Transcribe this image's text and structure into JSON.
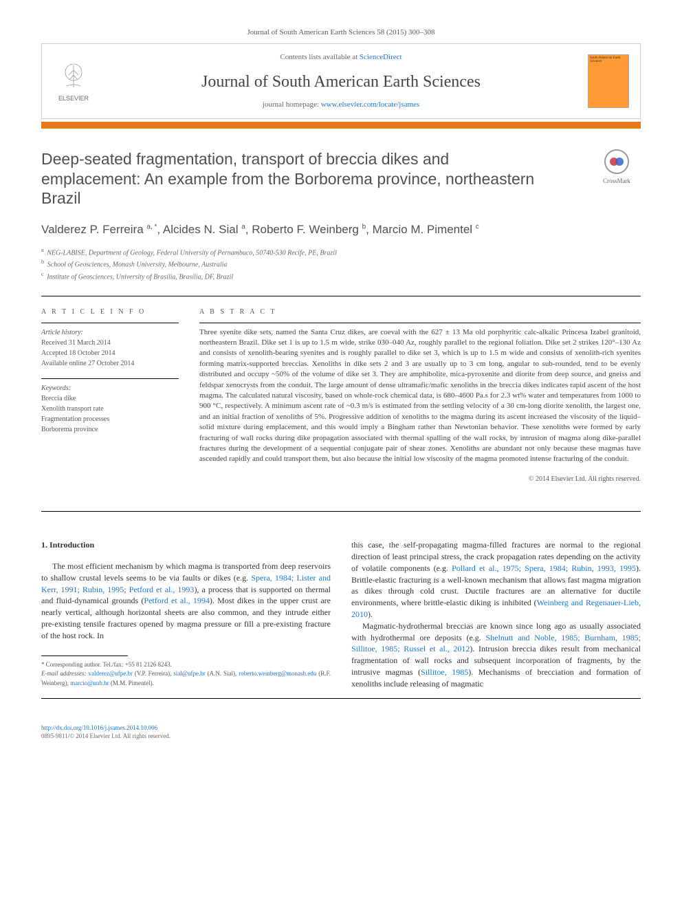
{
  "journal_ref": "Journal of South American Earth Sciences 58 (2015) 300–308",
  "header": {
    "contents_text": "Contents lists available at ",
    "contents_link": "ScienceDirect",
    "journal_title": "Journal of South American Earth Sciences",
    "homepage_text": "journal homepage: ",
    "homepage_link": "www.elsevier.com/locate/jsames",
    "elsevier_label": "ELSEVIER",
    "cover_title": "South American Earth Sciences"
  },
  "article": {
    "title": "Deep-seated fragmentation, transport of breccia dikes and emplacement: An example from the Borborema province, northeastern Brazil",
    "crossmark": "CrossMark",
    "authors_html": "Valderez P. Ferreira <sup>a, *</sup>, Alcides N. Sial <sup>a</sup>, Roberto F. Weinberg <sup>b</sup>, Marcio M. Pimentel <sup>c</sup>",
    "affiliations": [
      "a NEG-LABISE, Department of Geology, Federal University of Pernambuco, 50740-530 Recife, PE, Brazil",
      "b School of Geosciences, Monash University, Melbourne, Australia",
      "c Institute of Geosciences, University of Brasília, Brasília, DF, Brazil"
    ]
  },
  "info": {
    "heading": "A R T I C L E   I N F O",
    "history_label": "Article history:",
    "received": "Received 31 March 2014",
    "accepted": "Accepted 18 October 2014",
    "online": "Available online 27 October 2014",
    "keywords_label": "Keywords:",
    "keywords": [
      "Breccia dike",
      "Xenolith transport rate",
      "Fragmentation processes",
      "Borborema province"
    ]
  },
  "abstract": {
    "heading": "A B S T R A C T",
    "text": "Three syenite dike sets, named the Santa Cruz dikes, are coeval with the 627 ± 13 Ma old porphyritic calc-alkalic Princesa Izabel granitoid, northeastern Brazil. Dike set 1 is up to 1.5 m wide, strike 030–040 Az, roughly parallel to the regional foliation. Dike set 2 strikes 120°–130 Az and consists of xenolith-bearing syenites and is roughly parallel to dike set 3, which is up to 1.5 m wide and consists of xenolith-rich syenites forming matrix-supported breccias. Xenoliths in dike sets 2 and 3 are usually up to 3 cm long, angular to sub-rounded, tend to be evenly distributed and occupy ~50% of the volume of dike set 3. They are amphibolite, mica-pyroxenite and diorite from deep source, and gneiss and feldspar xenocrysts from the conduit. The large amount of dense ultramafic/mafic xenoliths in the breccia dikes indicates rapid ascent of the host magma. The calculated natural viscosity, based on whole-rock chemical data, is 680–4600 Pa.s for 2.3 wt% water and temperatures from 1000 to 900 °C, respectively. A minimum ascent rate of ~0.3 m/s is estimated from the settling velocity of a 30 cm-long diorite xenolith, the largest one, and an initial fraction of xenoliths of 5%. Progressive addition of xenoliths to the magma during its ascent increased the viscosity of the liquid–solid mixture during emplacement, and this would imply a Bingham rather than Newtonian behavior. These xenoliths were formed by early fracturing of wall rocks during dike propagation associated with thermal spalling of the wall rocks, by intrusion of magma along dike-parallel fractures during the development of a sequential conjugate pair of shear zones. Xenoliths are abundant not only because these magmas have ascended rapidly and could transport them, but also because the initial low viscosity of the magma promoted intense fracturing of the conduit.",
    "copyright": "© 2014 Elsevier Ltd. All rights reserved."
  },
  "body": {
    "section_number": "1.",
    "section_title": "Introduction",
    "col1_p1_a": "The most efficient mechanism by which magma is transported from deep reservoirs to shallow crustal levels seems to be via faults or dikes (e.g. ",
    "col1_p1_links": "Spera, 1984; Lister and Kerr, 1991; Rubin, 1995; Petford et al., 1993",
    "col1_p1_b": "), a process that is supported on thermal and fluid-dynamical grounds (",
    "col1_p1_link2": "Petford et al., 1994",
    "col1_p1_c": "). Most dikes in the upper crust are nearly vertical, although horizontal sheets are also common, and they intrude either pre-existing tensile fractures opened by magma pressure or fill a pre-existing fracture of the host rock. In",
    "col2_p1_a": "this case, the self-propagating magma-filled fractures are normal to the regional direction of least principal stress, the crack propagation rates depending on the activity of volatile components (e.g. ",
    "col2_p1_links": "Pollard et al., 1975; Spera, 1984; Rubin, 1993, 1995",
    "col2_p1_b": "). Brittle-elastic fracturing is a well-known mechanism that allows fast magma migration as dikes through cold crust. Ductile fractures are an alternative for ductile environments, where brittle-elastic diking is inhibited (",
    "col2_p1_link2": "Weinberg and Regenauer-Lieb, 2010",
    "col2_p1_c": ").",
    "col2_p2_a": "Magmatic-hydrothermal breccias are known since long ago as usually associated with hydrothermal ore deposits (e.g. ",
    "col2_p2_links": "Shelnutt and Noble, 1985; Burnham, 1985; Sillitoe, 1985; Russel et al., 2012",
    "col2_p2_b": "). Intrusion breccia dikes result from mechanical fragmentation of wall rocks and subsequent incorporation of fragments, by the intrusive magmas (",
    "col2_p2_link2": "Sillitoe, 1985",
    "col2_p2_c": "). Mechanisms of brecciation and formation of xenoliths include releasing of magmatic"
  },
  "footnotes": {
    "corresponding": "* Corresponding author. Tel./fax: +55 81 2126 8243.",
    "email_label": "E-mail addresses: ",
    "emails": [
      {
        "addr": "valderez@ufpe.br",
        "name": " (V.P. Ferreira), "
      },
      {
        "addr": "sial@ufpe.br",
        "name": " (A.N. Sial), "
      },
      {
        "addr": "roberto.weinberg@monash.edu",
        "name": " (R.F. Weinberg), "
      },
      {
        "addr": "marcio@unb.br",
        "name": " (M.M. Pimentel)."
      }
    ]
  },
  "footer": {
    "doi": "http://dx.doi.org/10.1016/j.jsames.2014.10.006",
    "issn_line": "0895-9811/© 2014 Elsevier Ltd. All rights reserved."
  },
  "colors": {
    "orange": "#e67817",
    "link": "#1976d2",
    "text": "#333333",
    "grey": "#666666"
  }
}
